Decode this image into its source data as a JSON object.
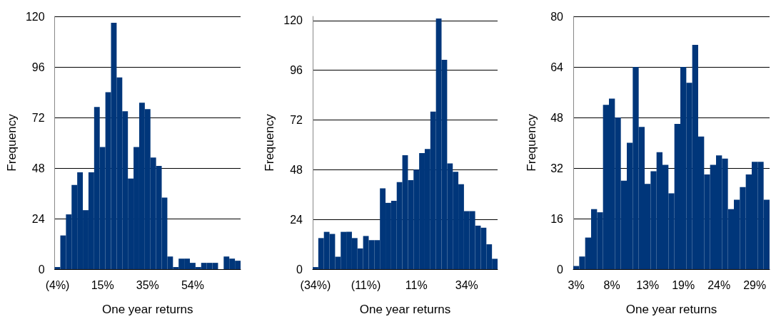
{
  "chart_data": [
    {
      "type": "bar",
      "xlabel": "One year returns",
      "ylabel": "Frequency",
      "color": "#00367a",
      "grid": "y",
      "ylim": [
        0,
        120
      ],
      "yticks": [
        0,
        24,
        48,
        72,
        96,
        120
      ],
      "categories": [
        "(4%)",
        null,
        null,
        null,
        null,
        null,
        null,
        null,
        "15%",
        null,
        null,
        null,
        null,
        null,
        null,
        null,
        "35%",
        null,
        null,
        null,
        null,
        null,
        null,
        null,
        "54%",
        null,
        null,
        null,
        null,
        null,
        null,
        null,
        null
      ],
      "values": [
        1,
        16,
        26,
        40,
        46,
        28,
        46,
        77,
        58,
        84,
        117,
        91,
        75,
        43,
        58,
        79,
        76,
        53,
        49,
        34,
        6,
        1,
        5,
        5,
        3,
        1,
        3,
        3,
        3,
        0,
        6,
        5,
        4
      ]
    },
    {
      "type": "bar",
      "xlabel": "One year returns",
      "ylabel": "Frequency",
      "color": "#00367a",
      "grid": "y",
      "ylim": [
        0,
        122
      ],
      "yticks": [
        0,
        24,
        48,
        72,
        96,
        120
      ],
      "categories": [
        "(34%)",
        null,
        null,
        null,
        null,
        null,
        null,
        null,
        null,
        "(11%)",
        null,
        null,
        null,
        null,
        null,
        null,
        null,
        null,
        "11%",
        null,
        null,
        null,
        null,
        null,
        null,
        null,
        null,
        "34%",
        null,
        null,
        null,
        null,
        null
      ],
      "values": [
        1,
        15,
        18,
        17,
        6,
        18,
        18,
        15,
        10,
        16,
        14,
        14,
        39,
        32,
        33,
        42,
        55,
        43,
        48,
        56,
        58,
        76,
        121,
        101,
        51,
        47,
        41,
        28,
        28,
        21,
        20,
        12,
        5
      ]
    },
    {
      "type": "bar",
      "xlabel": "One year returns",
      "ylabel": "Frequency",
      "color": "#00367a",
      "grid": "y",
      "ylim": [
        0,
        80
      ],
      "yticks": [
        0,
        16,
        32,
        48,
        64,
        80
      ],
      "categories": [
        "3%",
        null,
        null,
        null,
        null,
        null,
        "8%",
        null,
        null,
        null,
        null,
        null,
        "13%",
        null,
        null,
        null,
        null,
        null,
        "19%",
        null,
        null,
        null,
        null,
        null,
        "24%",
        null,
        null,
        null,
        null,
        null,
        "29%",
        null,
        null
      ],
      "values": [
        1,
        4,
        10,
        19,
        18,
        52,
        54,
        48,
        28,
        40,
        64,
        45,
        27,
        31,
        37,
        33,
        24,
        46,
        64,
        59,
        71,
        42,
        30,
        33,
        36,
        35,
        19,
        22,
        26,
        30,
        34,
        34,
        22
      ]
    }
  ]
}
